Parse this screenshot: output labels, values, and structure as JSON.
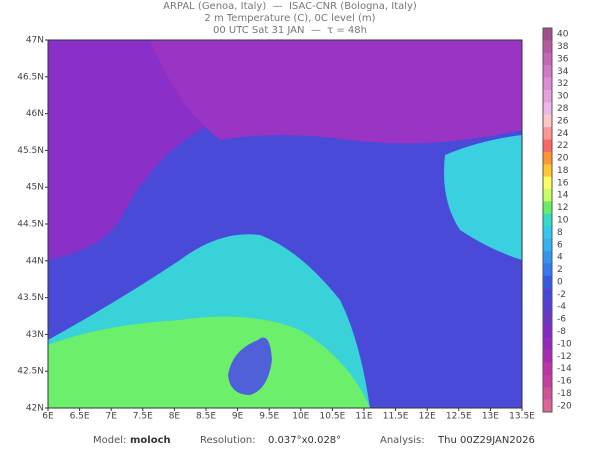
{
  "header": {
    "line1": "ARPAL (Genoa, Italy)  —  ISAC-CNR (Bologna, Italy)",
    "line2": "2 m Temperature (C), 0C level (m)",
    "line3": "00 UTC Sat 31 JAN  —  τ = 48h"
  },
  "map": {
    "lat_labels": [
      "47N",
      "46.5N",
      "46N",
      "45.5N",
      "45N",
      "44.5N",
      "44N",
      "43.5N",
      "43N",
      "42.5N",
      "42N"
    ],
    "lon_labels": [
      "6E",
      "6.5E",
      "7E",
      "7.5E",
      "8E",
      "8.5E",
      "9E",
      "9.5E",
      "10E",
      "10.5E",
      "11E",
      "11.5E",
      "12E",
      "12.5E",
      "13E",
      "13.5E"
    ]
  },
  "colorbar": {
    "ticks": [
      40,
      38,
      36,
      34,
      32,
      30,
      28,
      26,
      24,
      22,
      20,
      18,
      16,
      14,
      12,
      10,
      8,
      6,
      4,
      2,
      0,
      -2,
      -4,
      -6,
      -8,
      -10,
      -12,
      -14,
      -16,
      -18,
      -20
    ],
    "colors": [
      "#a0508c",
      "#b45aa0",
      "#c864b4",
      "#d278c8",
      "#dc8cd2",
      "#e6a0dc",
      "#f0b4e6",
      "#ffc8c8",
      "#ff9696",
      "#ff6464",
      "#ff9632",
      "#ffc832",
      "#ffff64",
      "#c8ff64",
      "#64f064",
      "#32dcc8",
      "#32c8f0",
      "#32b4f0",
      "#3296f0",
      "#3278f0",
      "#325ae6",
      "#4646dc",
      "#5a3cd2",
      "#6e32c8",
      "#8228c8",
      "#9628be",
      "#aa28b4",
      "#be32aa",
      "#c83ca0",
      "#d25096",
      "#dc6496"
    ]
  },
  "footer": {
    "model_label": "Model:",
    "model": "moloch",
    "resolution_label": "Resolution:",
    "resolution": "0.037°x0.028°",
    "analysis_label": "Analysis:",
    "analysis": "Thu 00Z29JAN2026"
  }
}
